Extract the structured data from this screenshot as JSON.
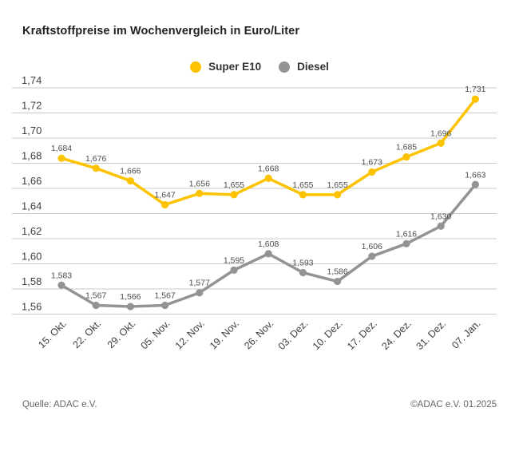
{
  "title": "Kraftstoffpreise im Wochenvergleich in Euro/Liter",
  "legend": [
    {
      "label": "Super E10",
      "color": "#FDC300"
    },
    {
      "label": "Diesel",
      "color": "#939393"
    }
  ],
  "footer": {
    "source": "Quelle: ADAC e.V.",
    "copyright": "©ADAC e.V. 01.2025"
  },
  "chart_data": {
    "type": "line",
    "title": "Kraftstoffpreise im Wochenvergleich in Euro/Liter",
    "categories": [
      "15. Okt.",
      "22. Okt.",
      "29. Okt.",
      "05. Nov.",
      "12. Nov.",
      "19. Nov.",
      "26. Nov.",
      "03. Dez.",
      "10. Dez.",
      "17. Dez.",
      "24. Dez.",
      "31. Dez.",
      "07. Jan."
    ],
    "series": [
      {
        "name": "Super E10",
        "color": "#FDC300",
        "values": [
          1.684,
          1.676,
          1.666,
          1.647,
          1.656,
          1.655,
          1.668,
          1.655,
          1.655,
          1.673,
          1.685,
          1.696,
          1.731
        ],
        "labels": [
          "1,684",
          "1,676",
          "1,666",
          "1,647",
          "1,656",
          "1,655",
          "1,668",
          "1,655",
          "1,655",
          "1,673",
          "1,685",
          "1,696",
          "1,731"
        ]
      },
      {
        "name": "Diesel",
        "color": "#939393",
        "values": [
          1.583,
          1.567,
          1.566,
          1.567,
          1.577,
          1.595,
          1.608,
          1.593,
          1.586,
          1.606,
          1.616,
          1.63,
          1.663
        ],
        "labels": [
          "1,583",
          "1,567",
          "1,566",
          "1,567",
          "1,577",
          "1,595",
          "1,608",
          "1,593",
          "1,586",
          "1,606",
          "1,616",
          "1,630",
          "1,663"
        ]
      }
    ],
    "ylim": [
      1.56,
      1.74
    ],
    "ytick_step": 0.02,
    "ytick_labels": [
      "1,74",
      "1,72",
      "1,70",
      "1,68",
      "1,66",
      "1,64",
      "1,62",
      "1,60",
      "1,58",
      "1,56"
    ],
    "ylabel": "",
    "xlabel": "",
    "grid": true,
    "grid_color": "#CBCBCB",
    "axis_text_color": "#3F3F3F",
    "value_label_color": "#4D4D4D",
    "legend_position": "top-center"
  }
}
